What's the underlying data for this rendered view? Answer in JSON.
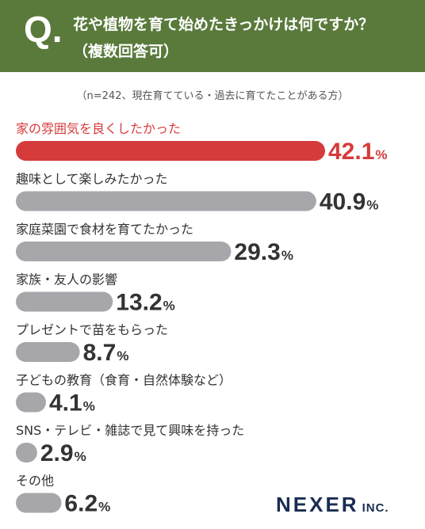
{
  "header": {
    "q_letter": "Q",
    "q_dot": ".",
    "question_line1": "花や植物を育て始めたきっかけは何ですか？",
    "question_line2": "（複数回答可）"
  },
  "note": "（n=242、現在育てている・過去に育てたことがある方）",
  "logo": {
    "name": "NEXER",
    "suffix": "INC."
  },
  "colors": {
    "header_bg": "#5a7a3c",
    "highlight": "#d63b3b",
    "bar": "#a7a7ab",
    "text": "#333333"
  },
  "chart_data": {
    "type": "bar",
    "orientation": "horizontal",
    "unit": "%",
    "categories": [
      "家の雰囲気を良くしたかった",
      "趣味として楽しみたかった",
      "家庭菜園で食材を育てたかった",
      "家族・友人の影響",
      "プレゼントで苗をもらった",
      "子どもの教育（食育・自然体験など）",
      "SNS・テレビ・雑誌で見て興味を持った",
      "その他"
    ],
    "values": [
      42.1,
      40.9,
      29.3,
      13.2,
      8.7,
      4.1,
      2.9,
      6.2
    ],
    "highlight_index": 0,
    "xlim": [
      0,
      42.1
    ]
  }
}
